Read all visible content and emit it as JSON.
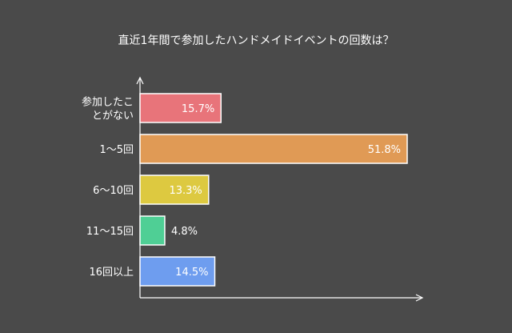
{
  "chart_data": {
    "type": "bar",
    "orientation": "horizontal",
    "title": "直近1年間で参加したハンドメイドイベントの回数は？",
    "categories": [
      [
        "参加したこ",
        "とがない"
      ],
      [
        "1〜5回"
      ],
      [
        "6〜10回"
      ],
      [
        "11〜15回"
      ],
      [
        "16回以上"
      ]
    ],
    "values": [
      15.7,
      51.8,
      13.3,
      4.8,
      14.5
    ],
    "data_labels": [
      "15.7%",
      "51.8%",
      "13.3%",
      "4.8%",
      "14.5%"
    ],
    "colors": [
      "#e8747a",
      "#e09a55",
      "#ddc940",
      "#4fcf95",
      "#6e9def"
    ],
    "xlim": [
      0,
      55
    ],
    "grid": false,
    "xlabel": "",
    "ylabel": ""
  }
}
